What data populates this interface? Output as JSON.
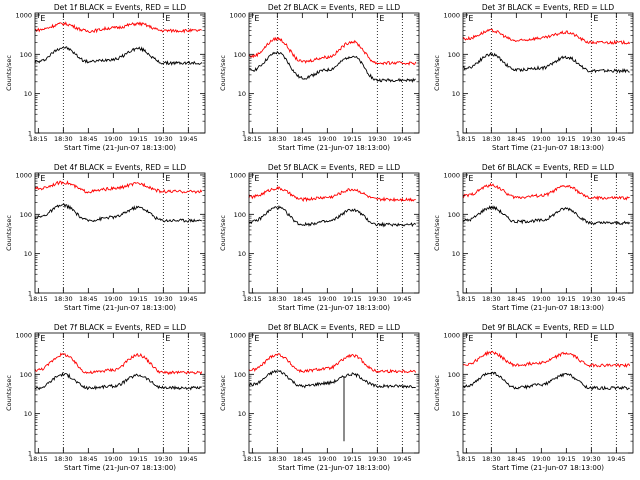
{
  "colors": {
    "events": "#000000",
    "lld": "#ff0000",
    "axis": "#000000"
  },
  "chart_data": [
    {
      "type": "line",
      "title": "Det 1f BLACK = Events, RED = LLD",
      "xlabel": "Start Time (21-Jun-07 18:13:00)",
      "ylabel": "Counts/sec",
      "x_ticks": [
        "18:15",
        "18:30",
        "18:45",
        "19:00",
        "19:15",
        "19:30",
        "19:45"
      ],
      "y_ticks": [
        "1",
        "10",
        "100",
        "1000"
      ],
      "y_scale": "log",
      "ylim": [
        1,
        1000
      ],
      "markers": [
        {
          "label": "E",
          "x": "18:15"
        },
        {
          "label": "E",
          "x": "19:30"
        }
      ],
      "dotted_lines_x": [
        "18:30",
        "19:30",
        "19:45"
      ],
      "series": [
        {
          "name": "Events",
          "color": "#000000",
          "x": [
            "18:15",
            "18:30",
            "18:45",
            "19:00",
            "19:15",
            "19:30",
            "19:45"
          ],
          "values": [
            65,
            150,
            65,
            75,
            140,
            60,
            60
          ]
        },
        {
          "name": "LLD",
          "color": "#ff0000",
          "x": [
            "18:15",
            "18:30",
            "18:45",
            "19:00",
            "19:15",
            "19:30",
            "19:45"
          ],
          "values": [
            420,
            600,
            390,
            470,
            600,
            400,
            400
          ]
        }
      ]
    },
    {
      "type": "line",
      "title": "Det 2f BLACK = Events, RED = LLD",
      "xlabel": "Start Time (21-Jun-07 18:13:00)",
      "ylabel": "Counts/sec",
      "x_ticks": [
        "18:15",
        "18:30",
        "18:45",
        "19:00",
        "19:15",
        "19:30",
        "19:45"
      ],
      "y_ticks": [
        "1",
        "10",
        "100",
        "1000"
      ],
      "y_scale": "log",
      "ylim": [
        1,
        1000
      ],
      "markers": [
        {
          "label": "E",
          "x": "18:15"
        },
        {
          "label": "E",
          "x": "19:30"
        }
      ],
      "dotted_lines_x": [
        "18:30",
        "19:30",
        "19:45"
      ],
      "series": [
        {
          "name": "Events",
          "color": "#000000",
          "x": [
            "18:15",
            "18:30",
            "18:45",
            "19:00",
            "19:15",
            "19:30",
            "19:45"
          ],
          "values": [
            40,
            110,
            25,
            40,
            90,
            22,
            22
          ]
        },
        {
          "name": "LLD",
          "color": "#ff0000",
          "x": [
            "18:15",
            "18:30",
            "18:45",
            "19:00",
            "19:15",
            "19:30",
            "19:45"
          ],
          "values": [
            90,
            250,
            65,
            85,
            210,
            60,
            60
          ]
        }
      ]
    },
    {
      "type": "line",
      "title": "Det 3f BLACK = Events, RED = LLD",
      "xlabel": "Start Time (21-Jun-07 18:13:00)",
      "ylabel": "Counts/sec",
      "x_ticks": [
        "18:15",
        "18:30",
        "18:45",
        "19:00",
        "19:15",
        "19:30",
        "19:45"
      ],
      "y_ticks": [
        "1",
        "10",
        "100",
        "1000"
      ],
      "y_scale": "log",
      "ylim": [
        1,
        1000
      ],
      "markers": [
        {
          "label": "E",
          "x": "18:15"
        },
        {
          "label": "E",
          "x": "19:30"
        }
      ],
      "dotted_lines_x": [
        "18:30",
        "19:30",
        "19:45"
      ],
      "series": [
        {
          "name": "Events",
          "color": "#000000",
          "x": [
            "18:15",
            "18:30",
            "18:45",
            "19:00",
            "19:15",
            "19:30",
            "19:45"
          ],
          "values": [
            45,
            100,
            40,
            45,
            85,
            38,
            38
          ]
        },
        {
          "name": "LLD",
          "color": "#ff0000",
          "x": [
            "18:15",
            "18:30",
            "18:45",
            "19:00",
            "19:15",
            "19:30",
            "19:45"
          ],
          "values": [
            250,
            400,
            220,
            260,
            360,
            200,
            200
          ]
        }
      ]
    },
    {
      "type": "line",
      "title": "Det 4f BLACK = Events, RED = LLD",
      "xlabel": "Start Time (21-Jun-07 18:13:00)",
      "ylabel": "Counts/sec",
      "x_ticks": [
        "18:15",
        "18:30",
        "18:45",
        "19:00",
        "19:15",
        "19:30",
        "19:45"
      ],
      "y_ticks": [
        "1",
        "10",
        "100",
        "1000"
      ],
      "y_scale": "log",
      "ylim": [
        1,
        1000
      ],
      "markers": [
        {
          "label": "E",
          "x": "18:15"
        },
        {
          "label": "E",
          "x": "19:30"
        }
      ],
      "dotted_lines_x": [
        "18:30",
        "19:30",
        "19:45"
      ],
      "series": [
        {
          "name": "Events",
          "color": "#000000",
          "x": [
            "18:15",
            "18:30",
            "18:45",
            "19:00",
            "19:15",
            "19:30",
            "19:45"
          ],
          "values": [
            85,
            170,
            70,
            85,
            150,
            70,
            70
          ]
        },
        {
          "name": "LLD",
          "color": "#ff0000",
          "x": [
            "18:15",
            "18:30",
            "18:45",
            "19:00",
            "19:15",
            "19:30",
            "19:45"
          ],
          "values": [
            450,
            650,
            380,
            450,
            600,
            380,
            380
          ]
        }
      ]
    },
    {
      "type": "line",
      "title": "Det 5f BLACK = Events, RED = LLD",
      "xlabel": "Start Time (21-Jun-07 18:13:00)",
      "ylabel": "Counts/sec",
      "x_ticks": [
        "18:15",
        "18:30",
        "18:45",
        "19:00",
        "19:15",
        "19:30",
        "19:45"
      ],
      "y_ticks": [
        "1",
        "10",
        "100",
        "1000"
      ],
      "y_scale": "log",
      "ylim": [
        1,
        1000
      ],
      "markers": [
        {
          "label": "E",
          "x": "18:15"
        },
        {
          "label": "E",
          "x": "19:30"
        }
      ],
      "dotted_lines_x": [
        "18:30",
        "19:30",
        "19:45"
      ],
      "series": [
        {
          "name": "Events",
          "color": "#000000",
          "x": [
            "18:15",
            "18:30",
            "18:45",
            "19:00",
            "19:15",
            "19:30",
            "19:45"
          ],
          "values": [
            65,
            150,
            55,
            65,
            130,
            55,
            55
          ]
        },
        {
          "name": "LLD",
          "color": "#ff0000",
          "x": [
            "18:15",
            "18:30",
            "18:45",
            "19:00",
            "19:15",
            "19:30",
            "19:45"
          ],
          "values": [
            280,
            460,
            240,
            270,
            430,
            240,
            240
          ]
        }
      ]
    },
    {
      "type": "line",
      "title": "Det 6f BLACK = Events, RED = LLD",
      "xlabel": "Start Time (21-Jun-07 18:13:00)",
      "ylabel": "Counts/sec",
      "x_ticks": [
        "18:15",
        "18:30",
        "18:45",
        "19:00",
        "19:15",
        "19:30",
        "19:45"
      ],
      "y_ticks": [
        "1",
        "10",
        "100",
        "1000"
      ],
      "y_scale": "log",
      "ylim": [
        1,
        1000
      ],
      "markers": [
        {
          "label": "E",
          "x": "18:15"
        },
        {
          "label": "E",
          "x": "19:30"
        }
      ],
      "dotted_lines_x": [
        "18:30",
        "19:30",
        "19:45"
      ],
      "series": [
        {
          "name": "Events",
          "color": "#000000",
          "x": [
            "18:15",
            "18:30",
            "18:45",
            "19:00",
            "19:15",
            "19:30",
            "19:45"
          ],
          "values": [
            70,
            150,
            65,
            70,
            140,
            60,
            60
          ]
        },
        {
          "name": "LLD",
          "color": "#ff0000",
          "x": [
            "18:15",
            "18:30",
            "18:45",
            "19:00",
            "19:15",
            "19:30",
            "19:45"
          ],
          "values": [
            300,
            550,
            270,
            300,
            520,
            260,
            260
          ]
        }
      ]
    },
    {
      "type": "line",
      "title": "Det 7f BLACK = Events, RED = LLD",
      "xlabel": "Start Time (21-Jun-07 18:13:00)",
      "ylabel": "Counts/sec",
      "x_ticks": [
        "18:15",
        "18:30",
        "18:45",
        "19:00",
        "19:15",
        "19:30",
        "19:45"
      ],
      "y_ticks": [
        "1",
        "10",
        "100",
        "1000"
      ],
      "y_scale": "log",
      "ylim": [
        1,
        1000
      ],
      "markers": [
        {
          "label": "E",
          "x": "18:15"
        },
        {
          "label": "E",
          "x": "19:30"
        }
      ],
      "dotted_lines_x": [
        "18:30",
        "19:30",
        "19:45"
      ],
      "series": [
        {
          "name": "Events",
          "color": "#000000",
          "x": [
            "18:15",
            "18:30",
            "18:45",
            "19:00",
            "19:15",
            "19:30",
            "19:45"
          ],
          "values": [
            45,
            100,
            45,
            50,
            95,
            45,
            45
          ]
        },
        {
          "name": "LLD",
          "color": "#ff0000",
          "x": [
            "18:15",
            "18:30",
            "18:45",
            "19:00",
            "19:15",
            "19:30",
            "19:45"
          ],
          "values": [
            130,
            320,
            110,
            130,
            310,
            110,
            110
          ]
        }
      ]
    },
    {
      "type": "line",
      "title": "Det 8f BLACK = Events, RED = LLD",
      "xlabel": "Start Time (21-Jun-07 18:13:00)",
      "ylabel": "Counts/sec",
      "x_ticks": [
        "18:15",
        "18:30",
        "18:45",
        "19:00",
        "19:15",
        "19:30",
        "19:45"
      ],
      "y_ticks": [
        "1",
        "10",
        "100",
        "1000"
      ],
      "y_scale": "log",
      "ylim": [
        1,
        1000
      ],
      "markers": [
        {
          "label": "E",
          "x": "18:15"
        },
        {
          "label": "E",
          "x": "19:30"
        }
      ],
      "dotted_lines_x": [
        "18:30",
        "19:30",
        "19:45"
      ],
      "spike": {
        "x": "19:10",
        "min": 2
      },
      "series": [
        {
          "name": "Events",
          "color": "#000000",
          "x": [
            "18:15",
            "18:30",
            "18:45",
            "19:00",
            "19:15",
            "19:30",
            "19:45"
          ],
          "values": [
            55,
            120,
            50,
            60,
            100,
            50,
            50
          ]
        },
        {
          "name": "LLD",
          "color": "#ff0000",
          "x": [
            "18:15",
            "18:30",
            "18:45",
            "19:00",
            "19:15",
            "19:30",
            "19:45"
          ],
          "values": [
            130,
            320,
            120,
            140,
            300,
            120,
            120
          ]
        }
      ]
    },
    {
      "type": "line",
      "title": "Det 9f BLACK = Events, RED = LLD",
      "xlabel": "Start Time (21-Jun-07 18:13:00)",
      "ylabel": "Counts/sec",
      "x_ticks": [
        "18:15",
        "18:30",
        "18:45",
        "19:00",
        "19:15",
        "19:30",
        "19:45"
      ],
      "y_ticks": [
        "1",
        "10",
        "100",
        "1000"
      ],
      "y_scale": "log",
      "ylim": [
        1,
        1000
      ],
      "markers": [
        {
          "label": "E",
          "x": "18:15"
        },
        {
          "label": "E",
          "x": "19:30"
        }
      ],
      "dotted_lines_x": [
        "18:30",
        "19:30",
        "19:45"
      ],
      "series": [
        {
          "name": "Events",
          "color": "#000000",
          "x": [
            "18:15",
            "18:30",
            "18:45",
            "19:00",
            "19:15",
            "19:30",
            "19:45"
          ],
          "values": [
            50,
            110,
            45,
            55,
            100,
            45,
            45
          ]
        },
        {
          "name": "LLD",
          "color": "#ff0000",
          "x": [
            "18:15",
            "18:30",
            "18:45",
            "19:00",
            "19:15",
            "19:30",
            "19:45"
          ],
          "values": [
            180,
            360,
            170,
            200,
            340,
            170,
            170
          ]
        }
      ]
    }
  ]
}
